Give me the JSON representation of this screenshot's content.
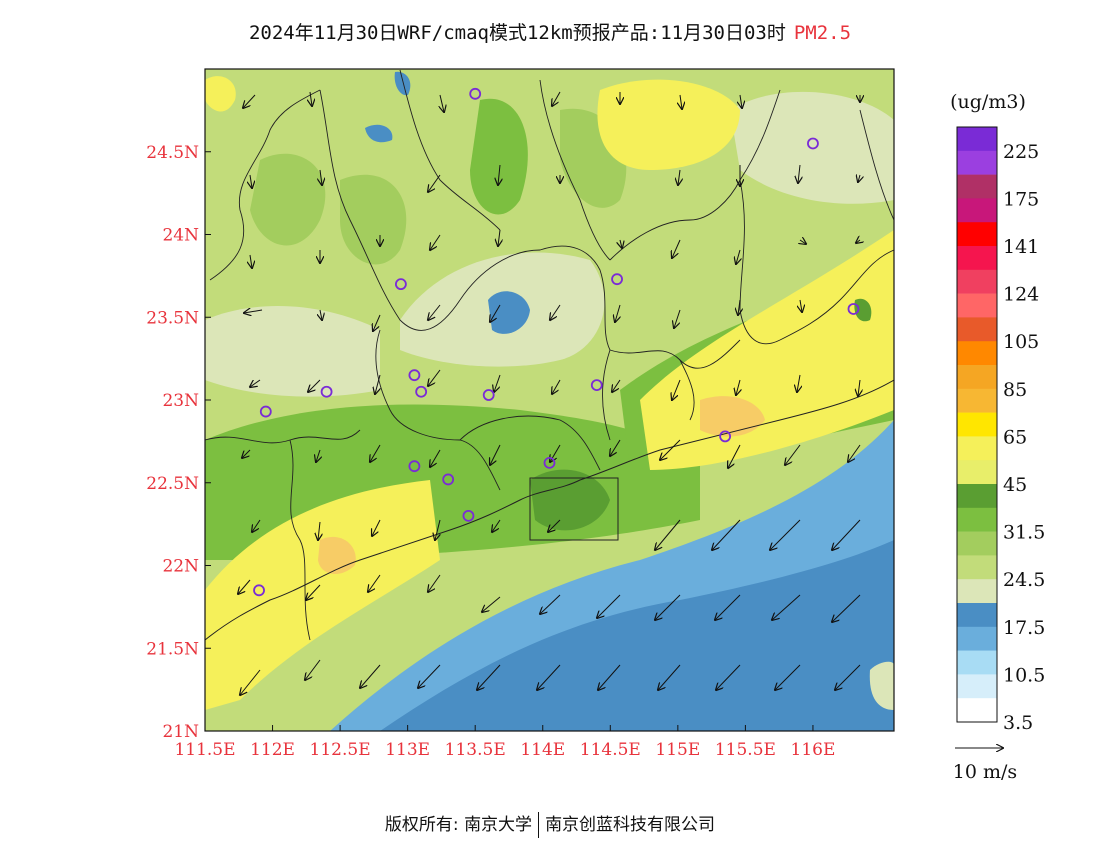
{
  "title": {
    "main": "2024年11月30日WRF/cmaq模式12km预报产品:11月30日03时",
    "species": "PM2.5",
    "species_color": "#e8333c"
  },
  "axes": {
    "lat_labels": [
      "24.5N",
      "24N",
      "23.5N",
      "23N",
      "22.5N",
      "22N",
      "21.5N",
      "21N"
    ],
    "lon_labels": [
      "111.5E",
      "112E",
      "112.5E",
      "113E",
      "113.5E",
      "114E",
      "114.5E",
      "115E",
      "115.5E",
      "116E"
    ],
    "lat_range": [
      21.0,
      25.0
    ],
    "lon_range": [
      111.5,
      116.6
    ],
    "label_color": "#e8333c"
  },
  "colorbar": {
    "unit": "(ug/m3)",
    "labels": [
      "225",
      "175",
      "141",
      "124",
      "105",
      "85",
      "65",
      "45",
      "31.5",
      "24.5",
      "17.5",
      "10.5",
      "3.5"
    ],
    "colors_top_to_bottom": [
      "#7a2bd6",
      "#9b3fe0",
      "#b03066",
      "#c8177a",
      "#ff0000",
      "#f5154e",
      "#f04060",
      "#ff6666",
      "#e85a2a",
      "#ff8800",
      "#f5a623",
      "#f7b733",
      "#ffe600",
      "#f5f05a",
      "#e8ee6a",
      "#5a9e32",
      "#7cbf40",
      "#a3cd5e",
      "#c2dc7a",
      "#dce6b8",
      "#4a8ec4",
      "#6aaedc",
      "#a8dcf4",
      "#d6eefa",
      "#ffffff"
    ]
  },
  "wind_legend": {
    "label": "10 m/s"
  },
  "field_colors": {
    "sea_deep": "#4a8ec4",
    "sea_light": "#6aaedc",
    "pale": "#dce6b8",
    "light_green": "#c2dc7a",
    "mid_green": "#a3cd5e",
    "dark_green": "#7cbf40",
    "yellow": "#f5f05a",
    "yellow_deep": "#f0e060",
    "orange_spot": "#f7cc66"
  },
  "stations": [
    {
      "lon": 113.5,
      "lat": 24.85
    },
    {
      "lon": 116.0,
      "lat": 24.55
    },
    {
      "lon": 112.95,
      "lat": 23.7
    },
    {
      "lon": 114.55,
      "lat": 23.73
    },
    {
      "lon": 116.3,
      "lat": 23.55
    },
    {
      "lon": 112.4,
      "lat": 23.05
    },
    {
      "lon": 111.95,
      "lat": 22.93
    },
    {
      "lon": 113.05,
      "lat": 23.15
    },
    {
      "lon": 113.1,
      "lat": 23.05
    },
    {
      "lon": 113.6,
      "lat": 23.03
    },
    {
      "lon": 114.4,
      "lat": 23.09
    },
    {
      "lon": 115.35,
      "lat": 22.78
    },
    {
      "lon": 113.05,
      "lat": 22.6
    },
    {
      "lon": 113.3,
      "lat": 22.52
    },
    {
      "lon": 114.05,
      "lat": 22.62
    },
    {
      "lon": 113.45,
      "lat": 22.3
    },
    {
      "lon": 111.9,
      "lat": 21.85
    }
  ],
  "footer": {
    "copyright_label": "版权所有:",
    "org1": "南京大学",
    "org2": "南京创蓝科技有限公司"
  }
}
